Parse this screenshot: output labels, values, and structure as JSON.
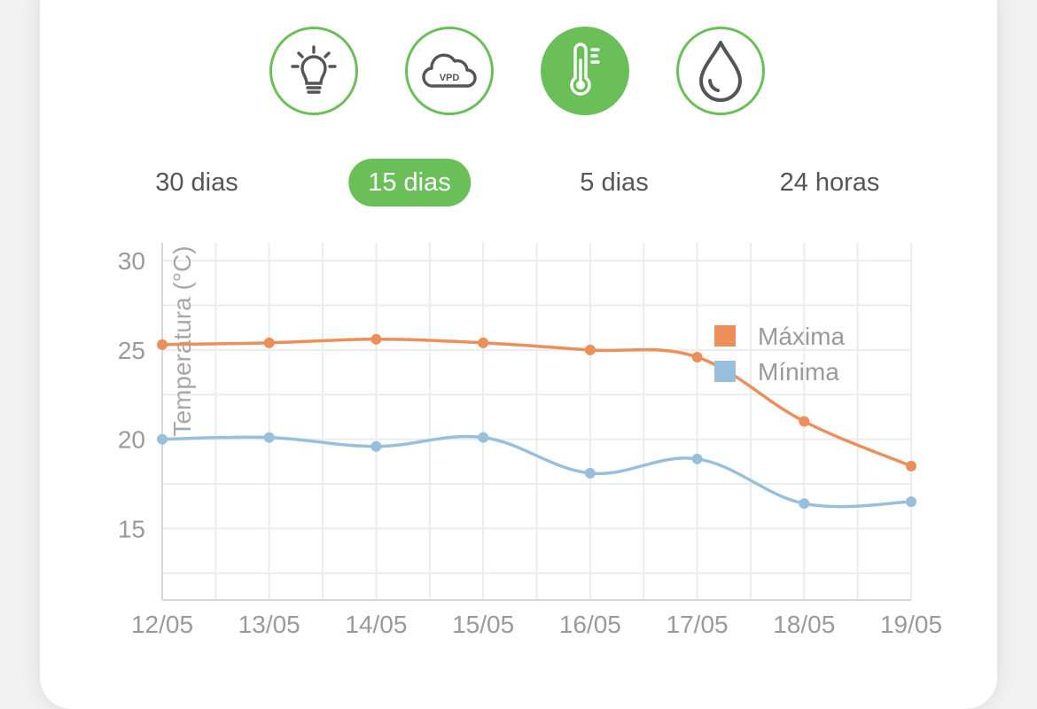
{
  "sensors": [
    {
      "icon": "lightbulb-icon",
      "active": false
    },
    {
      "icon": "vpd-cloud-icon",
      "label": "VPD",
      "active": false
    },
    {
      "icon": "thermometer-icon",
      "active": true
    },
    {
      "icon": "water-drop-icon",
      "active": false
    }
  ],
  "ranges": [
    {
      "label": "30 dias",
      "active": false
    },
    {
      "label": "15 dias",
      "active": true
    },
    {
      "label": "5 dias",
      "active": false
    },
    {
      "label": "24 horas",
      "active": false
    }
  ],
  "colors": {
    "accent": "#6bbf59",
    "max": "#ec8f5a",
    "min": "#98c0dd",
    "grid": "#ececec"
  },
  "chart_data": {
    "type": "line",
    "categories": [
      "12/05",
      "13/05",
      "14/05",
      "15/05",
      "16/05",
      "17/05",
      "18/05",
      "19/05"
    ],
    "series": [
      {
        "name": "Máxima",
        "values": [
          25.3,
          25.4,
          25.6,
          25.4,
          25.0,
          24.6,
          21.0,
          18.5
        ]
      },
      {
        "name": "Mínima",
        "values": [
          20.0,
          20.1,
          19.6,
          20.1,
          18.1,
          18.9,
          16.4,
          16.5
        ]
      }
    ],
    "ylabel": "Temperatura (°C)",
    "yticks": [
      15,
      20,
      25,
      30
    ],
    "ylim": [
      11,
      31
    ],
    "legend_position": "top-right",
    "grid": true
  }
}
